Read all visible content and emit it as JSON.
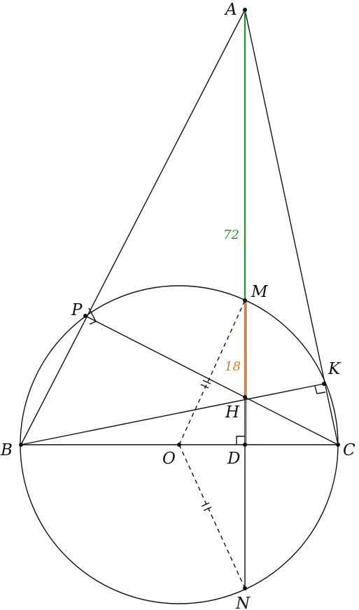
{
  "points": {
    "A": "A",
    "B": "B",
    "C": "C",
    "D": "D",
    "H": "H",
    "K": "K",
    "M": "M",
    "N": "N",
    "O": "O",
    "P": "P"
  },
  "measures": {
    "AM": "72",
    "MH": "18"
  },
  "colors": {
    "stroke": "#111111",
    "am_segment": "#1a9a1a",
    "mh_segment": "#e87722"
  }
}
